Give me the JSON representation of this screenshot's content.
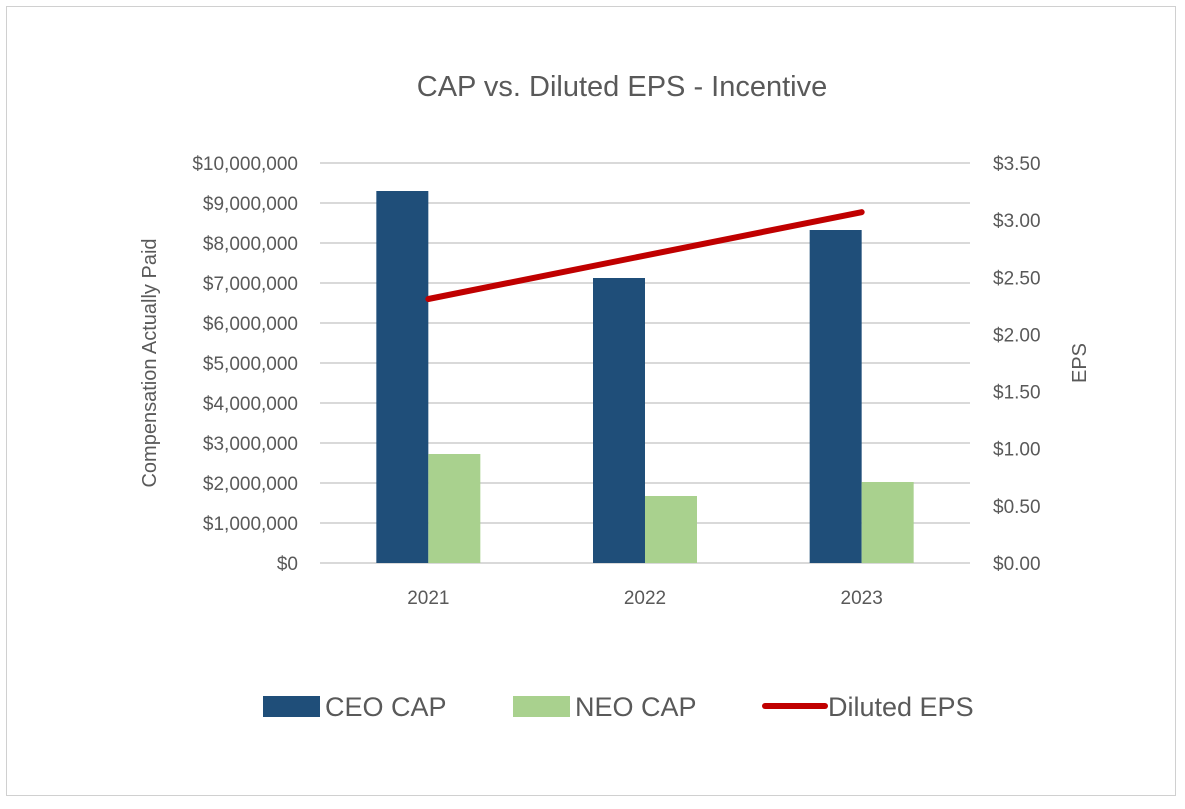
{
  "chart_data": {
    "type": "bar",
    "title": "CAP vs. Diluted EPS - Incentive",
    "categories": [
      "2021",
      "2022",
      "2023"
    ],
    "ylabel": "Compensation Actually Paid",
    "y2label": "EPS",
    "ylim": [
      0,
      10000000
    ],
    "y2lim": [
      0,
      3.5
    ],
    "yticks": [
      "$0",
      "$1,000,000",
      "$2,000,000",
      "$3,000,000",
      "$4,000,000",
      "$5,000,000",
      "$6,000,000",
      "$7,000,000",
      "$8,000,000",
      "$9,000,000",
      "$10,000,000"
    ],
    "y2ticks": [
      "$0.00",
      "$0.50",
      "$1.00",
      "$1.50",
      "$2.00",
      "$2.50",
      "$3.00",
      "$3.50"
    ],
    "grid": true,
    "legend_position": "bottom",
    "series": [
      {
        "name": "CEO CAP",
        "type": "bar",
        "axis": "left",
        "color": "#1f4e79",
        "values": [
          9300000,
          7125000,
          8325000
        ]
      },
      {
        "name": "NEO CAP",
        "type": "bar",
        "axis": "left",
        "color": "#a9d18e",
        "values": [
          2725000,
          1675000,
          2025000
        ]
      },
      {
        "name": "Diluted EPS",
        "type": "line",
        "axis": "right",
        "color": "#c00000",
        "values": [
          2.31,
          2.69,
          3.07
        ]
      }
    ]
  }
}
